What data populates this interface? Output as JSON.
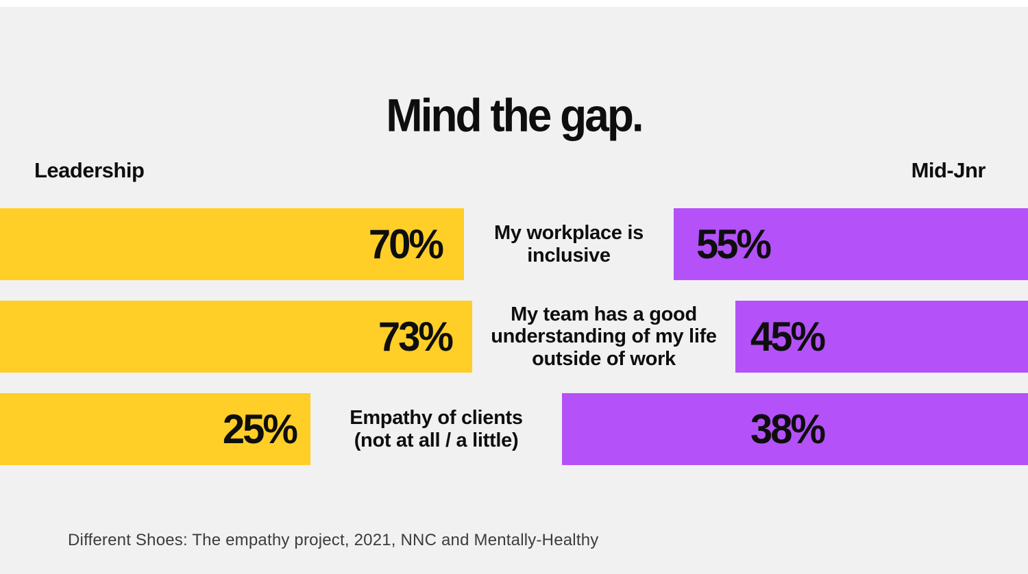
{
  "header": {
    "title": "Mind the gap."
  },
  "groups": {
    "left": "Leadership",
    "right": "Mid-Jnr"
  },
  "rows": [
    {
      "left_value": "70%",
      "right_value": "55%",
      "label_lines": [
        "My workplace is",
        "inclusive"
      ]
    },
    {
      "left_value": "73%",
      "right_value": "45%",
      "label_lines": [
        "My team has a good",
        "understanding of my life",
        "outside of work"
      ]
    },
    {
      "left_value": "25%",
      "right_value": "38%",
      "label_lines": [
        "Empathy of clients",
        "(not at all / a little)"
      ]
    }
  ],
  "footer": {
    "source": "Different Shoes: The empathy project, 2021, NNC and Mentally-Healthy"
  },
  "colors": {
    "background": "#F1F1F1",
    "top_strip": "#FFFFFF",
    "leadership_bar": "#FFCE27",
    "mid_jnr_bar": "#B451F8",
    "text": "#0E0E0E",
    "source_text": "#3C3C3C"
  },
  "chart_data": {
    "type": "bar",
    "orientation": "horizontal-diverging",
    "title": "Mind the gap.",
    "categories": [
      "My workplace is inclusive",
      "My team has a good understanding of my life outside of work",
      "Empathy of clients (not at all / a little)"
    ],
    "series": [
      {
        "name": "Leadership",
        "color": "#FFCE27",
        "values": [
          70,
          73,
          25
        ]
      },
      {
        "name": "Mid-Jnr",
        "color": "#B451F8",
        "values": [
          55,
          45,
          38
        ]
      }
    ],
    "value_unit": "%",
    "legend_position": "top (group labels left/right)",
    "grid": false,
    "axes": false,
    "note": "bar lengths are decorative, not proportional to values",
    "bar_pixel_widths": {
      "leadership": [
        677,
        689,
        453
      ],
      "mid_jnr": [
        517,
        427,
        680
      ]
    },
    "source": "Different Shoes: The empathy project, 2021, NNC and Mentally-Healthy"
  }
}
